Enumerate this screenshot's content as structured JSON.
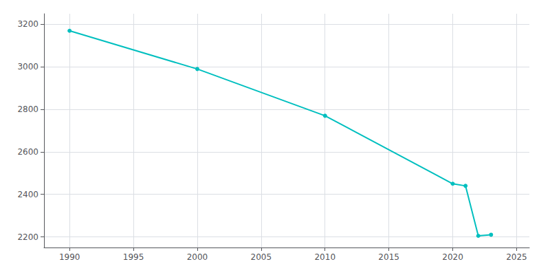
{
  "chart_data": {
    "type": "line",
    "x": [
      1990,
      2000,
      2010,
      2020,
      2021,
      2022,
      2023
    ],
    "values": [
      3170,
      2990,
      2770,
      2450,
      2440,
      2205,
      2210
    ],
    "color": "#00BFBF",
    "marker": "circle",
    "xlim": [
      1988,
      2026
    ],
    "xticks": [
      1990,
      1995,
      2000,
      2005,
      2010,
      2015,
      2020,
      2025
    ],
    "ylim": [
      2150,
      3250
    ],
    "yticks": [
      2200,
      2400,
      2600,
      2800,
      3000,
      3200
    ],
    "grid": true
  }
}
